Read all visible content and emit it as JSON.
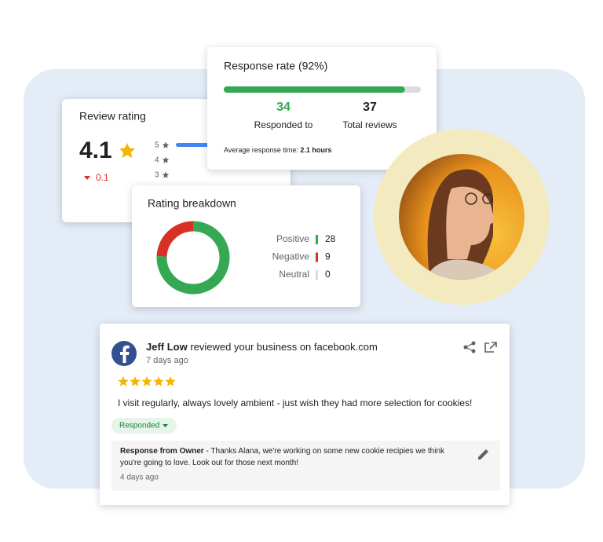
{
  "review_rating": {
    "title": "Review rating",
    "score": "4.1",
    "change": "0.1",
    "star_levels": [
      "5",
      "4",
      "3"
    ]
  },
  "response": {
    "title": "Response rate (92%)",
    "responded": 34,
    "responded_label": "Responded to",
    "total": 37,
    "total_label": "Total reviews",
    "average_label": "Average response time:",
    "average_value": "2.1 hours"
  },
  "breakdown": {
    "title": "Rating breakdown",
    "items": [
      {
        "label": "Positive",
        "value": 28,
        "color": "#34a853"
      },
      {
        "label": "Negative",
        "value": 9,
        "color": "#d93025"
      },
      {
        "label": "Neutral",
        "value": 0,
        "color": "#dadce0"
      }
    ]
  },
  "review": {
    "reviewer": "Jeff Low",
    "action": "reviewed your business on facebook.com",
    "time": "7 days ago",
    "rating": 5,
    "text": "I visit regularly, always lovely ambient - just wish they had more selection for cookies!",
    "status": "Responded",
    "reply": {
      "author": "Response from Owner",
      "text": "- Thanks Alana, we're working on some new cookie recipies we think you're going to love. Look out for those next month!",
      "time": "4 days ago"
    }
  }
}
